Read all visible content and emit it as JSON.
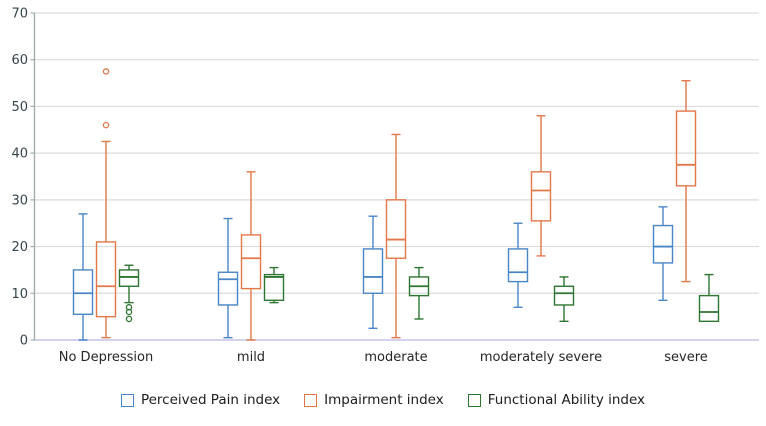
{
  "chart_data": {
    "type": "boxplot",
    "title": "",
    "xlabel": "",
    "ylabel": "",
    "categories": [
      "No Depression",
      "mild",
      "moderate",
      "moderately severe",
      "severe"
    ],
    "y_axis": {
      "min": 0,
      "max": 70,
      "tick_step": 10,
      "ticks": [
        0,
        10,
        20,
        30,
        40,
        50,
        60,
        70
      ]
    },
    "grid": true,
    "legend_position": "bottom",
    "series": [
      {
        "name": "Perceived Pain index",
        "color": "#4a86c6",
        "boxes": [
          {
            "low": 0,
            "q1": 5.5,
            "median": 10,
            "q3": 15,
            "high": 27,
            "outliers": []
          },
          {
            "low": 0.5,
            "q1": 7.5,
            "median": 13,
            "q3": 14.5,
            "high": 26,
            "outliers": []
          },
          {
            "low": 2.5,
            "q1": 10,
            "median": 13.5,
            "q3": 19.5,
            "high": 26.5,
            "outliers": []
          },
          {
            "low": 7,
            "q1": 12.5,
            "median": 14.5,
            "q3": 19.5,
            "high": 25,
            "outliers": []
          },
          {
            "low": 8.5,
            "q1": 16.5,
            "median": 20,
            "q3": 24.5,
            "high": 28.5,
            "outliers": []
          }
        ]
      },
      {
        "name": "Impairment index",
        "color": "#e2784a",
        "boxes": [
          {
            "low": 0.5,
            "q1": 5,
            "median": 11.5,
            "q3": 21,
            "high": 42.5,
            "outliers": [
              46,
              57.5
            ]
          },
          {
            "low": 0,
            "q1": 11,
            "median": 17.5,
            "q3": 22.5,
            "high": 36,
            "outliers": []
          },
          {
            "low": 0.5,
            "q1": 17.5,
            "median": 21.5,
            "q3": 30,
            "high": 44,
            "outliers": []
          },
          {
            "low": 18,
            "q1": 25.5,
            "median": 32,
            "q3": 36,
            "high": 48,
            "outliers": []
          },
          {
            "low": 12.5,
            "q1": 33,
            "median": 37.5,
            "q3": 49,
            "high": 55.5,
            "outliers": []
          }
        ]
      },
      {
        "name": "Functional Ability index",
        "color": "#2f7532",
        "boxes": [
          {
            "low": 8,
            "q1": 11.5,
            "median": 13.5,
            "q3": 15,
            "high": 16,
            "outliers": [
              7,
              6,
              4.5
            ]
          },
          {
            "low": 8,
            "q1": 8.5,
            "median": 13.5,
            "q3": 14,
            "high": 15.5,
            "outliers": []
          },
          {
            "low": 4.5,
            "q1": 9.5,
            "median": 11.5,
            "q3": 13.5,
            "high": 15.5,
            "outliers": []
          },
          {
            "low": 4,
            "q1": 7.5,
            "median": 10,
            "q3": 11.5,
            "high": 13.5,
            "outliers": []
          },
          {
            "low": 4,
            "q1": 4,
            "median": 6,
            "q3": 9.5,
            "high": 14,
            "outliers": []
          }
        ]
      }
    ],
    "palette": {
      "gridline": "#d9dedc",
      "zero_line": "#cdcdee",
      "axis_line": "#9fb0ac",
      "tick_label": "#36454c",
      "category_label": "#262626",
      "legend_text": "#1c1c1c",
      "background": "#ffffff"
    }
  }
}
